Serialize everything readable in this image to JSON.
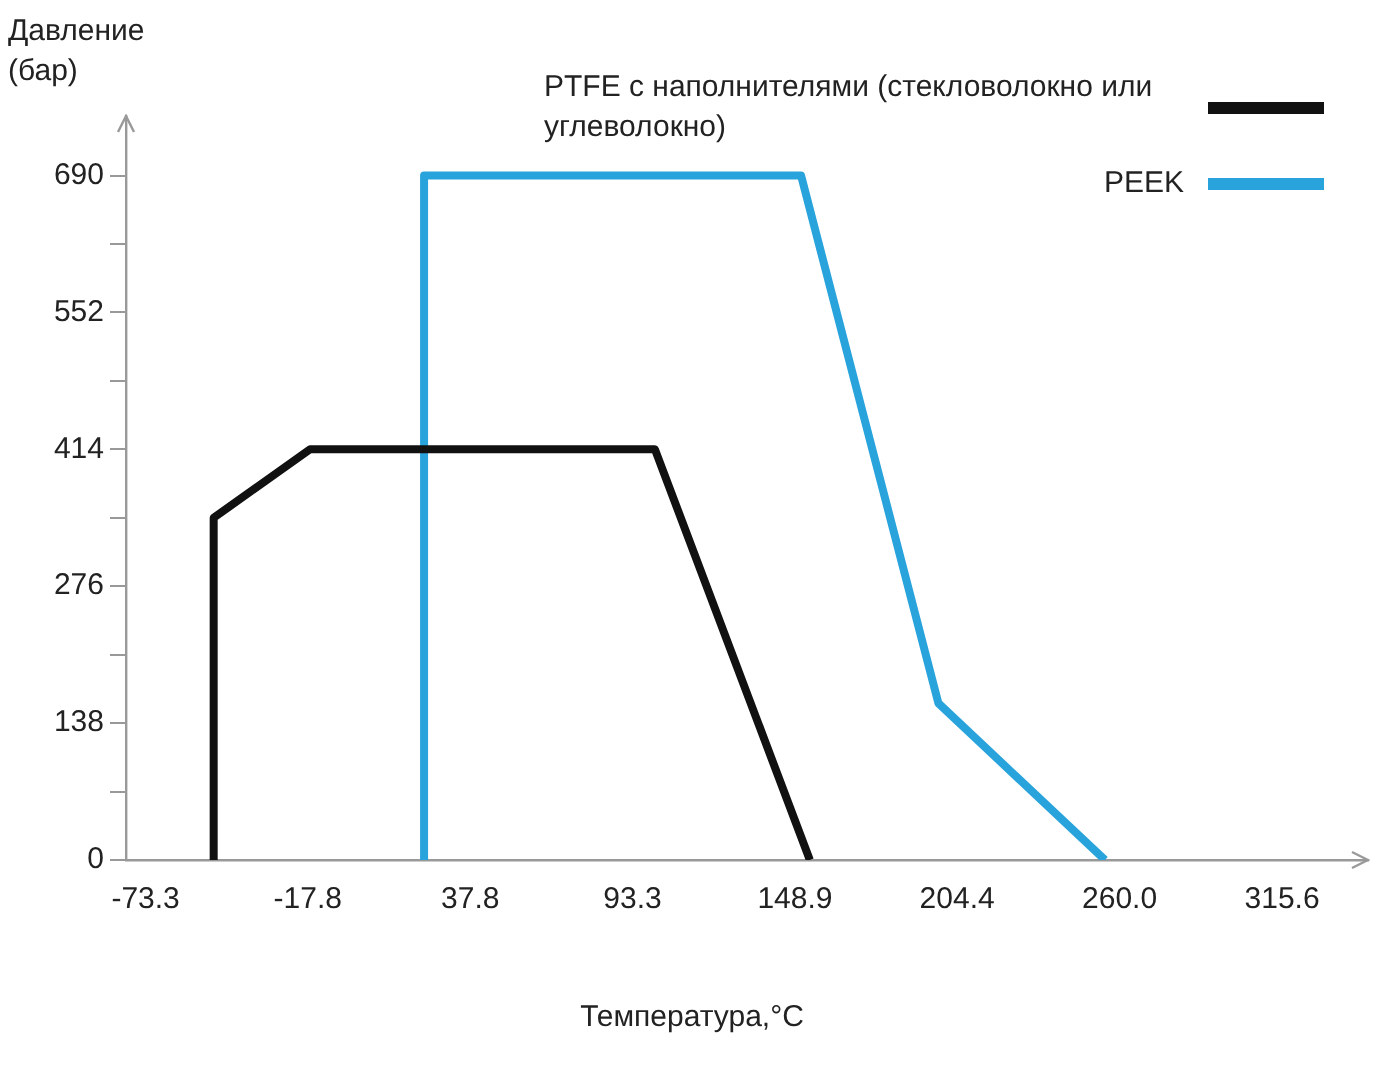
{
  "chart_data": {
    "type": "line",
    "xlabel": "Температура,°C",
    "ylabel": "Давление (бар)",
    "xlim": [
      -80,
      345
    ],
    "ylim": [
      0,
      750
    ],
    "xticks": [
      -73.3,
      -17.8,
      37.8,
      93.3,
      148.9,
      {
        "value": 204.4,
        "label": "204.4"
      },
      {
        "value": 260,
        "label": "260.0"
      },
      315.6
    ],
    "yticks": [
      0,
      {
        "value": 69,
        "label": null
      },
      138,
      {
        "value": 207,
        "label": null
      },
      276,
      {
        "value": 345,
        "label": null
      },
      414,
      {
        "value": 483,
        "label": null
      },
      552,
      {
        "value": 621,
        "label": null
      },
      690
    ],
    "grid": false,
    "legend": "top right",
    "marker": "none",
    "line_style": "solid",
    "series": [
      {
        "name": "PTFE с наполнителями (стекловолокно или углеволокно)",
        "color": "#111111",
        "x": [
          -50,
          -50,
          -17,
          101,
          154
        ],
        "values": [
          0,
          345,
          414,
          414,
          0
        ]
      },
      {
        "name": "PEEK",
        "color": "#29a3dc",
        "x": [
          22,
          22,
          151,
          198,
          255
        ],
        "values": [
          0,
          690,
          690,
          158,
          0
        ]
      }
    ]
  }
}
